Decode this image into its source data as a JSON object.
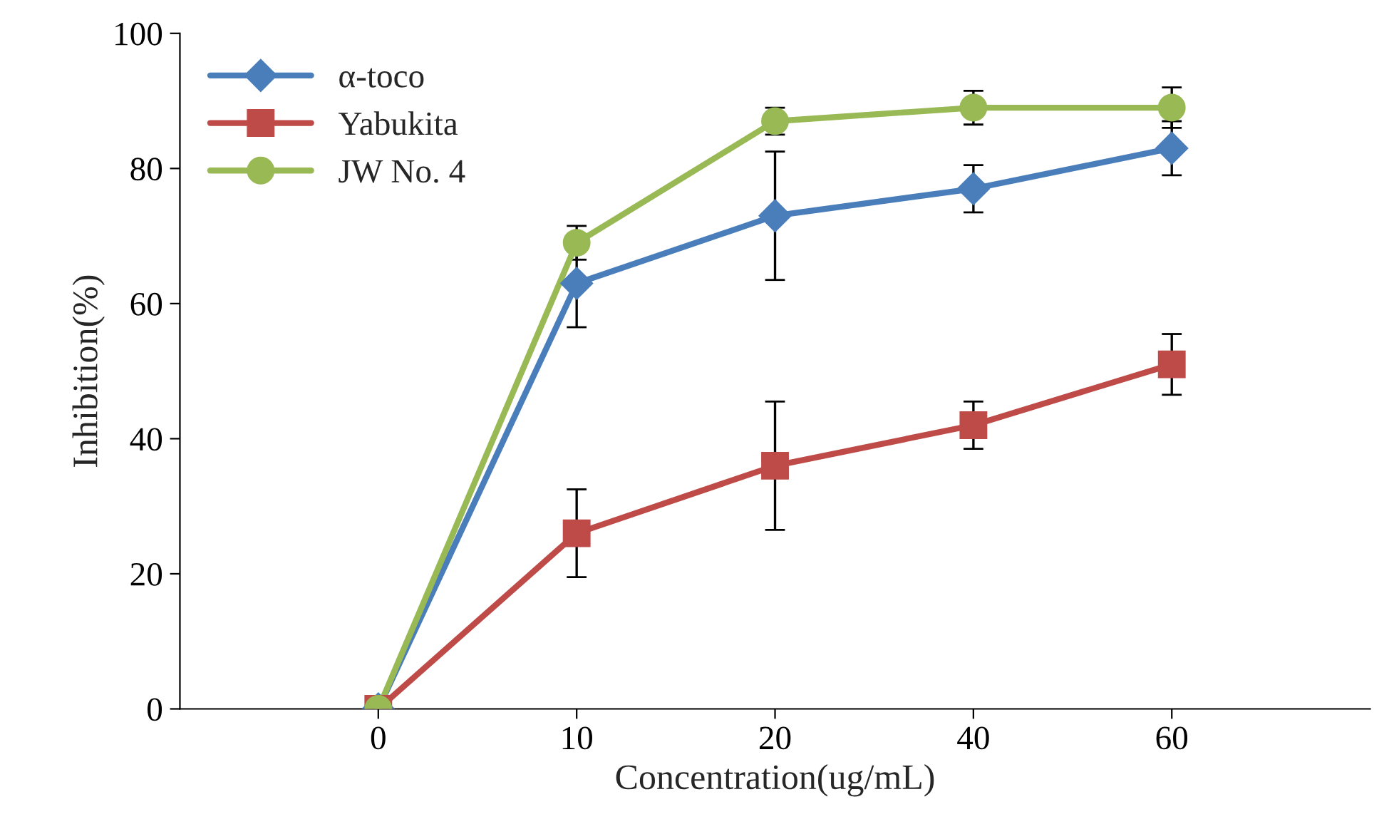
{
  "chart_data": {
    "type": "line",
    "xlabel": "Concentration(ug/mL)",
    "ylabel": "Inhibition(%)",
    "categories": [
      "0",
      "10",
      "20",
      "40",
      "60"
    ],
    "ylim": [
      0,
      100
    ],
    "yticks": [
      0,
      20,
      40,
      60,
      80,
      100
    ],
    "grid": false,
    "legend": "top left",
    "series": [
      {
        "name": "α-toco",
        "color": "#4a7ebb",
        "marker": "diamond",
        "values": [
          0,
          63,
          73,
          77,
          83
        ],
        "errors": [
          null,
          6.5,
          9.5,
          3.5,
          4
        ]
      },
      {
        "name": "Yabukita",
        "color": "#be4b48",
        "marker": "square",
        "values": [
          0,
          26,
          36,
          42,
          51
        ],
        "errors": [
          null,
          6.5,
          9.5,
          3.5,
          4.5
        ]
      },
      {
        "name": "JW No. 4",
        "color": "#98b954",
        "marker": "circle",
        "values": [
          0,
          69,
          87,
          89,
          89
        ],
        "errors": [
          null,
          2.5,
          2,
          2.5,
          3
        ]
      }
    ]
  }
}
